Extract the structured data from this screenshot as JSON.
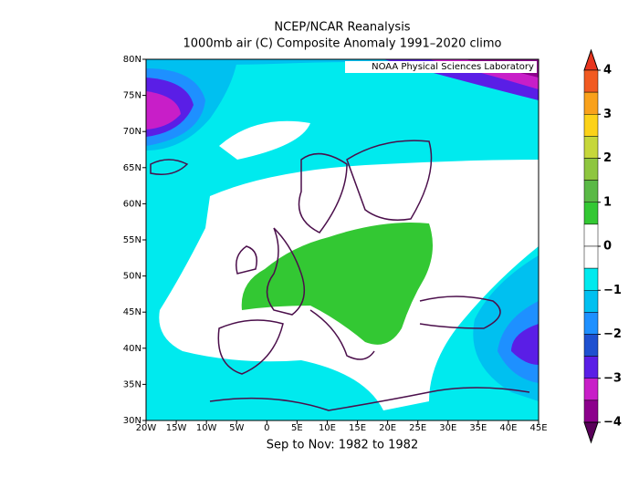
{
  "title": "NCEP/NCAR Reanalysis",
  "subtitle": "1000mb air (C) Composite Anomaly 1991–2020 climo",
  "period": "Sep to Nov: 1982 to 1982",
  "credit": "NOAA Physical Sciences Laboratory",
  "map": {
    "lonlim": [
      -20,
      45
    ],
    "latlim": [
      30,
      80
    ],
    "lat_ticks": [
      {
        "value": 80,
        "label": "80N"
      },
      {
        "value": 75,
        "label": "75N"
      },
      {
        "value": 70,
        "label": "70N"
      },
      {
        "value": 65,
        "label": "65N"
      },
      {
        "value": 60,
        "label": "60N"
      },
      {
        "value": 55,
        "label": "55N"
      },
      {
        "value": 50,
        "label": "50N"
      },
      {
        "value": 45,
        "label": "45N"
      },
      {
        "value": 40,
        "label": "40N"
      },
      {
        "value": 35,
        "label": "35N"
      },
      {
        "value": 30,
        "label": "30N"
      }
    ],
    "lon_ticks": [
      {
        "value": -20,
        "label": "20W"
      },
      {
        "value": -15,
        "label": "15W"
      },
      {
        "value": -10,
        "label": "10W"
      },
      {
        "value": -5,
        "label": "5W"
      },
      0,
      {
        "value": 5,
        "label": "5E"
      },
      {
        "value": 10,
        "label": "10E"
      },
      {
        "value": 15,
        "label": "15E"
      },
      {
        "value": 20,
        "label": "20E"
      },
      {
        "value": 25,
        "label": "25E"
      },
      {
        "value": 30,
        "label": "30E"
      },
      {
        "value": 35,
        "label": "35E"
      },
      {
        "value": 40,
        "label": "40E"
      },
      {
        "value": 45,
        "label": "45E"
      }
    ]
  },
  "colorbar": {
    "ticks": [
      4,
      3,
      2,
      1,
      0,
      {
        "value": -1,
        "label": "−1"
      },
      {
        "value": -2,
        "label": "−2"
      },
      {
        "value": -3,
        "label": "−3"
      },
      {
        "value": -4,
        "label": "−4"
      }
    ],
    "colors": [
      "#e8351e",
      "#f15a21",
      "#f9a11b",
      "#fcd218",
      "#c6d73a",
      "#8ec63f",
      "#5ab946",
      "#33c833",
      "#ffffff",
      "#ffffff",
      "#00eaee",
      "#00c0f0",
      "#1e90ff",
      "#1e50d0",
      "#5a1ee6",
      "#c81ec8",
      "#8c008c",
      "#5a005a"
    ]
  }
}
